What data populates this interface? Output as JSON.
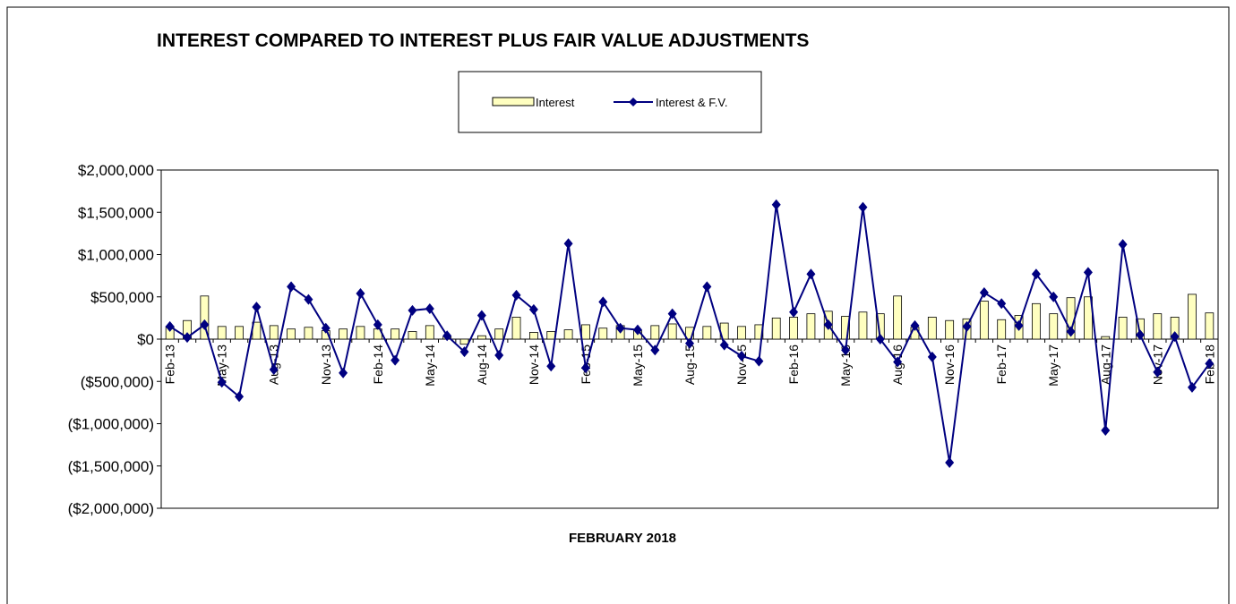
{
  "chart_data": {
    "type": "bar",
    "title": "INTEREST COMPARED TO INTEREST PLUS FAIR VALUE ADJUSTMENTS",
    "x_label": "FEBRUARY 2018",
    "categories": [
      "Feb-13",
      null,
      null,
      "May-13",
      null,
      null,
      "Aug-13",
      null,
      null,
      "Nov-13",
      null,
      null,
      "Feb-14",
      null,
      null,
      "May-14",
      null,
      null,
      "Aug-14",
      null,
      null,
      "Nov-14",
      null,
      null,
      "Feb-15",
      null,
      null,
      "May-15",
      null,
      null,
      "Aug-15",
      null,
      null,
      "Nov-15",
      null,
      null,
      "Feb-16",
      null,
      null,
      "May-16",
      null,
      null,
      "Aug-16",
      null,
      null,
      "Nov-16",
      null,
      null,
      "Feb-17",
      null,
      null,
      "May-17",
      null,
      null,
      "Aug-17",
      null,
      null,
      "Nov-17",
      null,
      null,
      "Feb-18"
    ],
    "series": [
      {
        "name": "Interest",
        "type": "bar",
        "color": "#ffffc0",
        "values": [
          150000,
          220000,
          510000,
          150000,
          150000,
          200000,
          160000,
          120000,
          140000,
          100000,
          120000,
          150000,
          120000,
          120000,
          90000,
          160000,
          30000,
          -60000,
          40000,
          120000,
          260000,
          80000,
          90000,
          110000,
          170000,
          130000,
          160000,
          100000,
          160000,
          180000,
          140000,
          150000,
          190000,
          150000,
          170000,
          250000,
          260000,
          300000,
          330000,
          270000,
          320000,
          300000,
          510000,
          140000,
          260000,
          220000,
          240000,
          450000,
          230000,
          280000,
          420000,
          300000,
          490000,
          500000,
          30000,
          260000,
          240000,
          300000,
          260000,
          530000,
          310000
        ]
      },
      {
        "name": "Interest & F.V.",
        "type": "line",
        "color": "#000080",
        "values": [
          150000,
          20000,
          170000,
          -510000,
          -680000,
          380000,
          -360000,
          620000,
          470000,
          130000,
          -400000,
          540000,
          170000,
          -250000,
          340000,
          360000,
          40000,
          -150000,
          280000,
          -190000,
          520000,
          350000,
          -320000,
          1130000,
          -340000,
          440000,
          130000,
          110000,
          -130000,
          300000,
          -50000,
          620000,
          -70000,
          -200000,
          -260000,
          1590000,
          320000,
          770000,
          170000,
          -130000,
          1560000,
          0,
          -270000,
          160000,
          -210000,
          -1460000,
          150000,
          550000,
          420000,
          160000,
          770000,
          500000,
          90000,
          790000,
          -1080000,
          1120000,
          50000,
          -390000,
          30000,
          -570000,
          -290000
        ]
      }
    ],
    "ylim": [
      -2000000,
      2000000
    ],
    "yticks": [
      {
        "value": -2000000,
        "label": "($2,000,000)"
      },
      {
        "value": -1500000,
        "label": "($1,500,000)"
      },
      {
        "value": -1000000,
        "label": "($1,000,000)"
      },
      {
        "value": -500000,
        "label": "($500,000)"
      },
      {
        "value": 0,
        "label": "$0"
      },
      {
        "value": 500000,
        "label": "$500,000"
      },
      {
        "value": 1000000,
        "label": "$1,000,000"
      },
      {
        "value": 1500000,
        "label": "$1,500,000"
      },
      {
        "value": 2000000,
        "label": "$2,000,000"
      }
    ],
    "grid": false
  }
}
